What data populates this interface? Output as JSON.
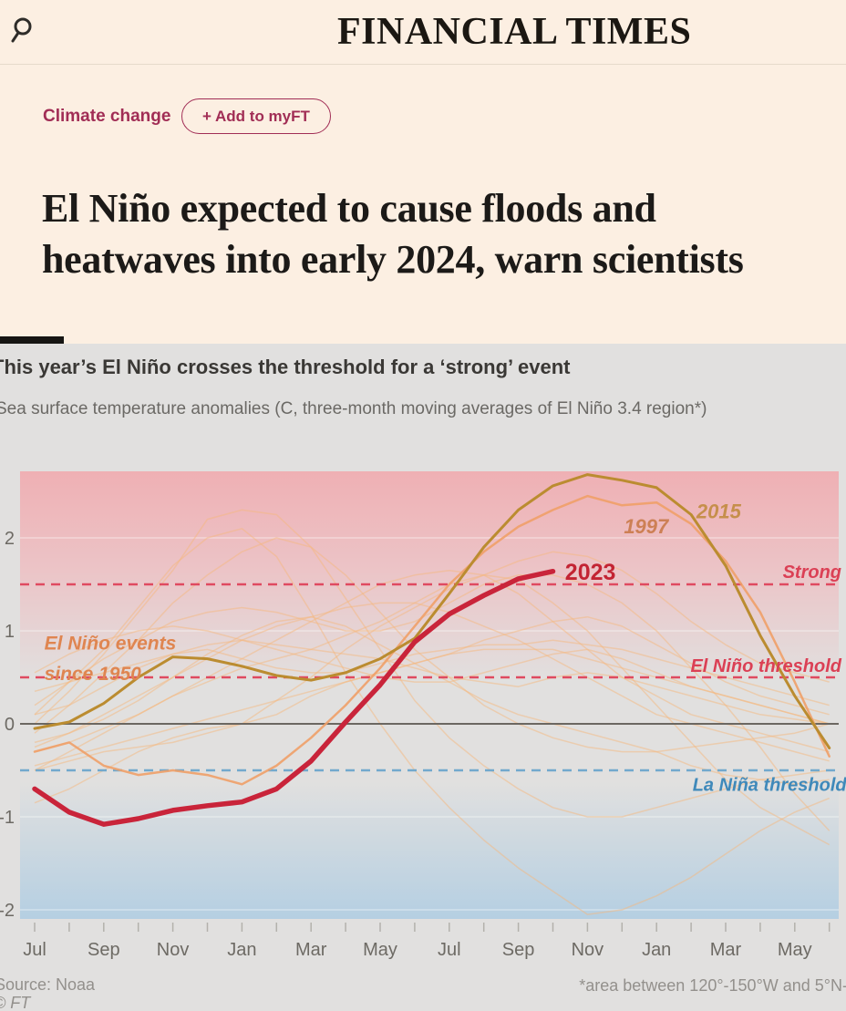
{
  "header": {
    "masthead": "FINANCIAL TIMES",
    "search_icon": "magnifying-glass"
  },
  "article": {
    "tag": "Climate change",
    "add_button_label": "+ Add to myFT",
    "headline": "El Niño expected to cause floods and heatwaves into early 2024, warn scientists"
  },
  "chart": {
    "title": "This year’s El Niño crosses the threshold for a ‘strong’ event",
    "subtitle": "Sea surface temperature anomalies (C, three-month moving averages of El Niño 3.4 region*)",
    "source": "Source: Noaa",
    "copyright": "© FT",
    "footnote": "*area between 120°-150°W and 5°N-"
  },
  "chart_data": {
    "type": "line",
    "title": "This year’s El Niño crosses the threshold for a ‘strong’ event",
    "subtitle": "Sea surface temperature anomalies (C, three-month moving averages of El Niño 3.4 region*)",
    "x_tick_labels": [
      "Jul",
      "Sep",
      "Nov",
      "Jan",
      "Mar",
      "May",
      "Jul",
      "Sep",
      "Nov",
      "Jan",
      "Mar",
      "May"
    ],
    "months_span": 24,
    "ylim": [
      -2.1,
      2.72
    ],
    "yticks": [
      {
        "label": "2",
        "value": 2
      },
      {
        "label": "1",
        "value": 1
      },
      {
        "label": "0",
        "value": 0
      },
      {
        "label": "-1",
        "value": -1
      },
      {
        "label": "-2",
        "value": -2
      }
    ],
    "grid_values": [
      2,
      1,
      -1,
      -2
    ],
    "colors": {
      "panel": "#e1e0df",
      "warm_top": "#efb0b4",
      "warm_mid": "#ecc3c6",
      "cool_bottom": "#b5cfe2",
      "grid": "#ffffff",
      "zero_line": "#6b6761",
      "tick": "#b3b1ac",
      "axis_label": "#6d6a64",
      "faint_event": "#f6b87e"
    },
    "thresholds": [
      {
        "name": "strong",
        "value": 1.5,
        "color": "#df4a60"
      },
      {
        "name": "el-nino",
        "value": 0.5,
        "color": "#df4a60"
      },
      {
        "name": "la-nina",
        "value": -0.5,
        "color": "#72a9cd"
      }
    ],
    "series": [
      {
        "name": "event-1",
        "role": "faint",
        "values": [
          -0.85,
          -0.7,
          -0.5,
          -0.3,
          -0.15,
          -0.05,
          0.0,
          0.1,
          0.3,
          0.45,
          0.55,
          0.65,
          0.75,
          0.9,
          1.0,
          1.1,
          1.15,
          1.05,
          0.85,
          0.65,
          0.45,
          0.3,
          0.2,
          0.1
        ]
      },
      {
        "name": "event-2",
        "role": "faint",
        "values": [
          0.35,
          0.45,
          0.55,
          0.65,
          0.75,
          0.8,
          0.7,
          0.6,
          0.55,
          0.55,
          0.65,
          0.75,
          0.8,
          0.85,
          0.85,
          0.9,
          0.85,
          0.8,
          0.7,
          0.6,
          0.5,
          0.4,
          0.3,
          0.2
        ]
      },
      {
        "name": "event-3",
        "role": "faint",
        "values": [
          -0.5,
          -0.4,
          -0.3,
          -0.25,
          -0.2,
          -0.1,
          0.0,
          0.25,
          0.5,
          0.8,
          1.05,
          1.25,
          1.45,
          1.6,
          1.75,
          1.85,
          1.8,
          1.65,
          1.4,
          1.1,
          0.85,
          0.65,
          0.55,
          0.45
        ]
      },
      {
        "name": "event-4",
        "role": "faint",
        "values": [
          -0.2,
          -0.1,
          0.05,
          0.25,
          0.5,
          0.75,
          0.95,
          1.1,
          1.15,
          1.05,
          0.85,
          0.65,
          0.45,
          0.25,
          0.1,
          0.0,
          -0.1,
          -0.2,
          -0.3,
          -0.45,
          -0.55,
          -0.6,
          -0.65,
          -0.6
        ]
      },
      {
        "name": "event-5",
        "role": "faint",
        "values": [
          -0.1,
          0.2,
          0.55,
          0.9,
          1.3,
          1.6,
          1.85,
          2.0,
          1.9,
          1.6,
          1.2,
          0.8,
          0.5,
          0.2,
          0.0,
          -0.15,
          -0.25,
          -0.3,
          -0.3,
          -0.25,
          -0.2,
          -0.15,
          -0.1,
          0.0
        ]
      },
      {
        "name": "event-6",
        "role": "faint",
        "values": [
          0.55,
          0.75,
          0.9,
          1.0,
          1.05,
          1.0,
          0.9,
          0.8,
          0.7,
          0.6,
          0.5,
          0.45,
          0.45,
          0.55,
          0.65,
          0.75,
          0.8,
          0.7,
          0.55,
          0.4,
          0.3,
          0.2,
          0.1,
          0.0
        ]
      },
      {
        "name": "event-7",
        "role": "faint",
        "values": [
          0.1,
          0.45,
          0.8,
          1.25,
          1.7,
          2.0,
          2.1,
          1.8,
          1.2,
          0.55,
          0.0,
          -0.5,
          -0.9,
          -1.25,
          -1.55,
          -1.8,
          -2.05,
          -2.0,
          -1.85,
          -1.65,
          -1.4,
          -1.15,
          -0.95,
          -0.8
        ]
      },
      {
        "name": "event-8",
        "role": "faint",
        "values": [
          -0.45,
          -0.35,
          -0.25,
          -0.15,
          -0.05,
          0.05,
          0.15,
          0.25,
          0.35,
          0.45,
          0.55,
          0.65,
          0.75,
          0.8,
          0.8,
          0.8,
          0.7,
          0.6,
          0.5,
          0.4,
          0.3,
          0.2,
          0.1,
          0.0
        ]
      },
      {
        "name": "event-9",
        "role": "faint",
        "values": [
          0.0,
          0.35,
          0.75,
          1.2,
          1.65,
          2.2,
          2.3,
          2.25,
          1.9,
          1.35,
          0.8,
          0.25,
          -0.15,
          -0.45,
          -0.7,
          -0.9,
          -1.0,
          -1.0,
          -0.9,
          -0.8,
          -0.7,
          -0.6,
          -0.55,
          -0.5
        ]
      },
      {
        "name": "event-10",
        "role": "faint",
        "values": [
          0.2,
          0.45,
          0.7,
          0.9,
          1.1,
          1.2,
          1.25,
          1.2,
          1.1,
          1.0,
          1.0,
          1.1,
          1.3,
          1.5,
          1.6,
          1.6,
          1.5,
          1.3,
          1.0,
          0.6,
          0.2,
          -0.25,
          -0.75,
          -1.15
        ]
      },
      {
        "name": "event-11",
        "role": "faint",
        "values": [
          -0.3,
          -0.2,
          -0.05,
          0.1,
          0.3,
          0.5,
          0.7,
          0.9,
          1.1,
          1.3,
          1.5,
          1.6,
          1.65,
          1.6,
          1.4,
          1.1,
          0.8,
          0.5,
          0.3,
          0.1,
          0.0,
          -0.1,
          -0.2,
          -0.3
        ]
      },
      {
        "name": "event-12",
        "role": "faint",
        "values": [
          -0.25,
          -0.1,
          0.1,
          0.3,
          0.5,
          0.7,
          0.9,
          1.05,
          1.15,
          1.25,
          1.3,
          1.3,
          1.2,
          1.05,
          0.9,
          0.7,
          0.5,
          0.3,
          0.1,
          0.0,
          -0.1,
          -0.2,
          -0.3,
          -0.4
        ]
      },
      {
        "name": "event-13",
        "role": "faint",
        "values": [
          -0.5,
          -0.3,
          -0.1,
          0.1,
          0.3,
          0.45,
          0.6,
          0.7,
          0.8,
          0.95,
          1.1,
          1.3,
          1.5,
          1.6,
          1.55,
          1.3,
          1.0,
          0.6,
          0.2,
          -0.2,
          -0.6,
          -0.9,
          -1.1,
          -1.3
        ]
      },
      {
        "name": "event-14",
        "role": "faint",
        "values": [
          0.1,
          0.2,
          0.4,
          0.6,
          0.75,
          0.85,
          0.9,
          0.85,
          0.8,
          0.75,
          0.7,
          0.6,
          0.5,
          0.45,
          0.4,
          0.5,
          0.55,
          0.5,
          0.4,
          0.3,
          0.2,
          0.1,
          0.05,
          0.0
        ]
      },
      {
        "name": "1997",
        "role": "main",
        "color": "#efa068",
        "width": 2.5,
        "opacity": 0.9,
        "values": [
          -0.3,
          -0.2,
          -0.45,
          -0.55,
          -0.5,
          -0.55,
          -0.65,
          -0.45,
          -0.15,
          0.2,
          0.6,
          1.05,
          1.5,
          1.85,
          2.12,
          2.3,
          2.45,
          2.35,
          2.38,
          2.15,
          1.75,
          1.2,
          0.45,
          -0.35
        ]
      },
      {
        "name": "2015",
        "role": "main",
        "color": "#bb8c30",
        "width": 3,
        "opacity": 1,
        "values": [
          -0.05,
          0.02,
          0.22,
          0.5,
          0.72,
          0.7,
          0.62,
          0.52,
          0.47,
          0.55,
          0.7,
          0.92,
          1.4,
          1.9,
          2.3,
          2.56,
          2.68,
          2.62,
          2.54,
          2.25,
          1.7,
          0.95,
          0.3,
          -0.26
        ]
      },
      {
        "name": "2023",
        "role": "main",
        "color": "#c9243a",
        "width": 5.5,
        "opacity": 1,
        "values": [
          -0.7,
          -0.95,
          -1.08,
          -1.02,
          -0.93,
          -0.88,
          -0.84,
          -0.7,
          -0.4,
          0.02,
          0.42,
          0.88,
          1.18,
          1.38,
          1.56,
          1.64
        ]
      }
    ],
    "annotations": [
      {
        "text": "El Niño events",
        "m": 0.28,
        "v": 0.8,
        "anchor": "start",
        "style": "italic",
        "weight": "bold",
        "size": 21,
        "color": "#df8550"
      },
      {
        "text": "since 1950",
        "m": 0.28,
        "v": 0.47,
        "anchor": "start",
        "style": "italic",
        "weight": "bold",
        "size": 21,
        "color": "#df8550"
      },
      {
        "text": "2023",
        "m": 15.35,
        "v": 1.55,
        "anchor": "start",
        "style": "normal",
        "weight": "bold",
        "size": 25,
        "color": "#c32433"
      },
      {
        "text": "1997",
        "m": 17.7,
        "v": 2.05,
        "anchor": "middle",
        "style": "italic",
        "weight": "bold",
        "size": 22,
        "color": "#cd8055"
      },
      {
        "text": "2015",
        "m": 19.8,
        "v": 2.21,
        "anchor": "middle",
        "style": "italic",
        "weight": "bold",
        "size": 22,
        "color": "#c68f4b"
      },
      {
        "text": "Strong",
        "m": 23.35,
        "v": 1.57,
        "anchor": "end",
        "style": "italic",
        "weight": "bold",
        "size": 20,
        "color": "#db4055"
      },
      {
        "text": "El Niño threshold",
        "m": 23.35,
        "v": 0.56,
        "anchor": "end",
        "style": "italic",
        "weight": "bold",
        "size": 20,
        "color": "#db4055"
      },
      {
        "text": "La Niña threshold",
        "m": 23.5,
        "v": -0.72,
        "anchor": "end",
        "style": "italic",
        "weight": "bold",
        "size": 20,
        "color": "#3f89ba"
      }
    ]
  }
}
